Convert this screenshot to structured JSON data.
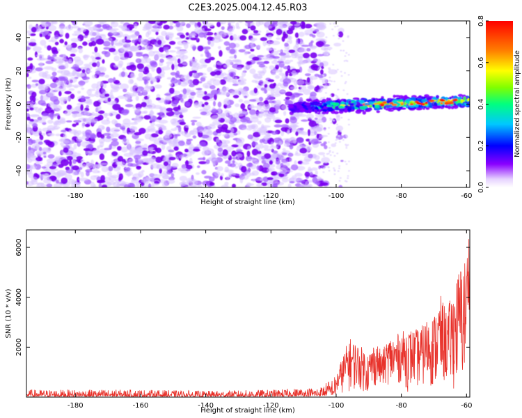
{
  "title": "C2E3.2025.004.12.45.R03",
  "chart_data": [
    {
      "type": "heatmap",
      "name": "spectrogram",
      "xlabel": "Height of straight line (km)",
      "ylabel": "Frequency (Hz)",
      "xlim": [
        -195,
        -59
      ],
      "ylim": [
        -50,
        50
      ],
      "xticks": [
        -180,
        -160,
        -140,
        -120,
        -100,
        -80,
        -60
      ],
      "yticks": [
        -40,
        -20,
        0,
        20,
        40
      ],
      "colorbar": {
        "label": "Normalized spectral amplitude",
        "range": [
          0.0,
          0.8
        ],
        "ticks": [
          0.0,
          0.2,
          0.4,
          0.6,
          0.8
        ],
        "colors": [
          "#ffffff",
          "#8a00ff",
          "#0000ff",
          "#00c8ff",
          "#00ff80",
          "#80ff00",
          "#ffff00",
          "#ff8000",
          "#ff0000"
        ]
      },
      "regions": [
        {
          "description": "broadband noise",
          "x_range": [
            -195,
            -103
          ],
          "freq_range": [
            -50,
            50
          ],
          "amplitude_range": [
            0.02,
            0.12
          ]
        },
        {
          "description": "signal band",
          "x_range": [
            -114,
            -59
          ],
          "center_freq_start": -2,
          "center_freq_end": 2,
          "bandwidth_hz": 6,
          "amplitude_range": [
            0.1,
            0.8
          ]
        }
      ]
    },
    {
      "type": "line",
      "name": "snr",
      "xlabel": "Height of straight line (km)",
      "ylabel": "SNR (10 * v/v)",
      "xlim": [
        -195,
        -59
      ],
      "ylim": [
        0,
        6700
      ],
      "xticks": [
        -180,
        -160,
        -140,
        -120,
        -100,
        -80,
        -60
      ],
      "yticks": [
        2000,
        4000,
        6000
      ],
      "series": [
        {
          "name": "SNR",
          "color": "#e8312a",
          "x": [
            -195,
            -180,
            -160,
            -140,
            -120,
            -105,
            -100,
            -96,
            -94,
            -92,
            -90,
            -88,
            -86,
            -84,
            -82,
            -80,
            -78,
            -76,
            -74,
            -72,
            -70,
            -68,
            -66,
            -64,
            -62,
            -60,
            -59.5
          ],
          "envelope_min": [
            20,
            20,
            20,
            20,
            20,
            40,
            100,
            200,
            300,
            250,
            60,
            400,
            350,
            500,
            300,
            600,
            200,
            400,
            300,
            500,
            300,
            400,
            500,
            300,
            400,
            600,
            3500
          ],
          "envelope_max": [
            300,
            300,
            300,
            250,
            300,
            400,
            900,
            2400,
            2200,
            2000,
            1800,
            2300,
            1800,
            2400,
            2500,
            2600,
            2800,
            2700,
            2800,
            3200,
            3300,
            4100,
            3500,
            4400,
            5300,
            5700,
            6600
          ]
        }
      ]
    }
  ]
}
